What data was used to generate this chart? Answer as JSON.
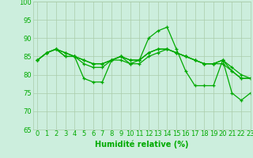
{
  "xlabel": "Humidité relative (%)",
  "bg_color": "#cceedd",
  "grid_color": "#aaccaa",
  "line_color": "#00aa00",
  "xlim": [
    -0.5,
    23
  ],
  "ylim": [
    65,
    100
  ],
  "xticks": [
    0,
    1,
    2,
    3,
    4,
    5,
    6,
    7,
    8,
    9,
    10,
    11,
    12,
    13,
    14,
    15,
    16,
    17,
    18,
    19,
    20,
    21,
    22,
    23
  ],
  "yticks": [
    65,
    70,
    75,
    80,
    85,
    90,
    95,
    100
  ],
  "lines": [
    [
      84,
      86,
      87,
      85,
      85,
      79,
      78,
      78,
      84,
      84,
      83,
      84,
      90,
      92,
      93,
      87,
      81,
      77,
      77,
      77,
      84,
      75,
      73,
      75
    ],
    [
      84,
      86,
      87,
      86,
      85,
      84,
      83,
      83,
      84,
      85,
      84,
      84,
      86,
      87,
      87,
      86,
      85,
      84,
      83,
      83,
      84,
      82,
      80,
      79
    ],
    [
      84,
      86,
      87,
      86,
      85,
      84,
      83,
      83,
      84,
      85,
      84,
      84,
      86,
      87,
      87,
      86,
      85,
      84,
      83,
      83,
      83,
      81,
      79,
      79
    ],
    [
      84,
      86,
      87,
      85,
      85,
      83,
      82,
      82,
      84,
      85,
      83,
      83,
      85,
      86,
      87,
      86,
      85,
      84,
      83,
      83,
      84,
      81,
      79,
      79
    ]
  ],
  "xlabel_fontsize": 7,
  "tick_fontsize": 6
}
